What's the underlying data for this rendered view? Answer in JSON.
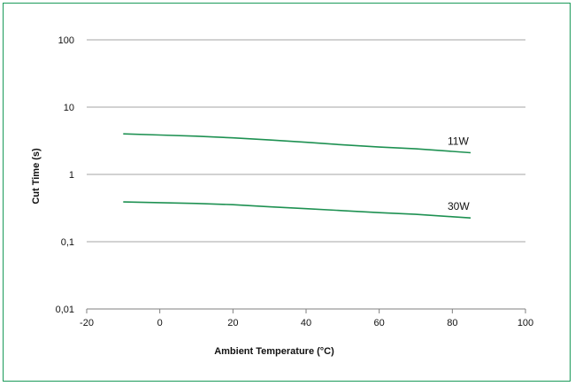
{
  "chart_data": {
    "type": "line",
    "title": "",
    "xlabel": "Ambient Temperature (°C)",
    "ylabel": "Cut Time (s)",
    "x_ticks": [
      "-20",
      "0",
      "20",
      "40",
      "60",
      "80",
      "100"
    ],
    "y_ticks": [
      "0,01",
      "0,1",
      "1",
      "10",
      "100"
    ],
    "xlim": [
      -20,
      100
    ],
    "ylim": [
      0.01,
      100
    ],
    "y_scale": "log",
    "grid": "horizontal",
    "colors": {
      "line": "#1e9152",
      "frame": "#1a9a59",
      "grid": "#a6a6a6"
    },
    "series": [
      {
        "name": "11W",
        "x": [
          -10,
          0,
          10,
          20,
          30,
          40,
          50,
          60,
          70,
          80,
          85
        ],
        "y": [
          4.0,
          3.85,
          3.7,
          3.5,
          3.25,
          3.0,
          2.75,
          2.55,
          2.4,
          2.2,
          2.1
        ]
      },
      {
        "name": "30W",
        "x": [
          -10,
          0,
          10,
          20,
          30,
          40,
          50,
          60,
          70,
          80,
          85
        ],
        "y": [
          0.39,
          0.38,
          0.37,
          0.355,
          0.33,
          0.31,
          0.29,
          0.27,
          0.255,
          0.235,
          0.225
        ]
      }
    ]
  }
}
